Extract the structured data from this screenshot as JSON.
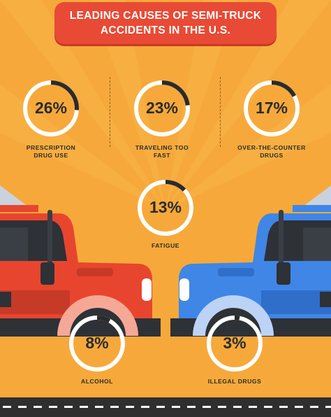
{
  "banner": {
    "title_line1": "LEADING CAUSES OF SEMI-TRUCK",
    "title_line2": "ACCIDENTS IN THE U.S."
  },
  "stats": [
    {
      "key": "prescription",
      "value": "26%",
      "label_line1": "PRESCRIPTION",
      "label_line2": "DRUG USE",
      "fraction": 0.26
    },
    {
      "key": "traveling",
      "value": "23%",
      "label_line1": "TRAVELING TOO",
      "label_line2": "FAST",
      "fraction": 0.23
    },
    {
      "key": "otc",
      "value": "17%",
      "label_line1": "OVER-THE-COUNTER",
      "label_line2": "DRUGS",
      "fraction": 0.17
    },
    {
      "key": "fatigue",
      "value": "13%",
      "label_line1": "FATIGUE",
      "label_line2": "",
      "fraction": 0.13
    },
    {
      "key": "alcohol",
      "value": "8%",
      "label_line1": "ALCOHOL",
      "label_line2": "",
      "fraction": 0.08
    },
    {
      "key": "illegal",
      "value": "3%",
      "label_line1": "ILLEGAL DRUGS",
      "label_line2": "",
      "fraction": 0.03
    }
  ],
  "colors": {
    "background": "#f6a93a",
    "banner": "#e84a35",
    "ring": "#ffffff",
    "ring_progress": "#2b2b2b",
    "truck_left": "#e8452f",
    "truck_right": "#3f86e6"
  }
}
